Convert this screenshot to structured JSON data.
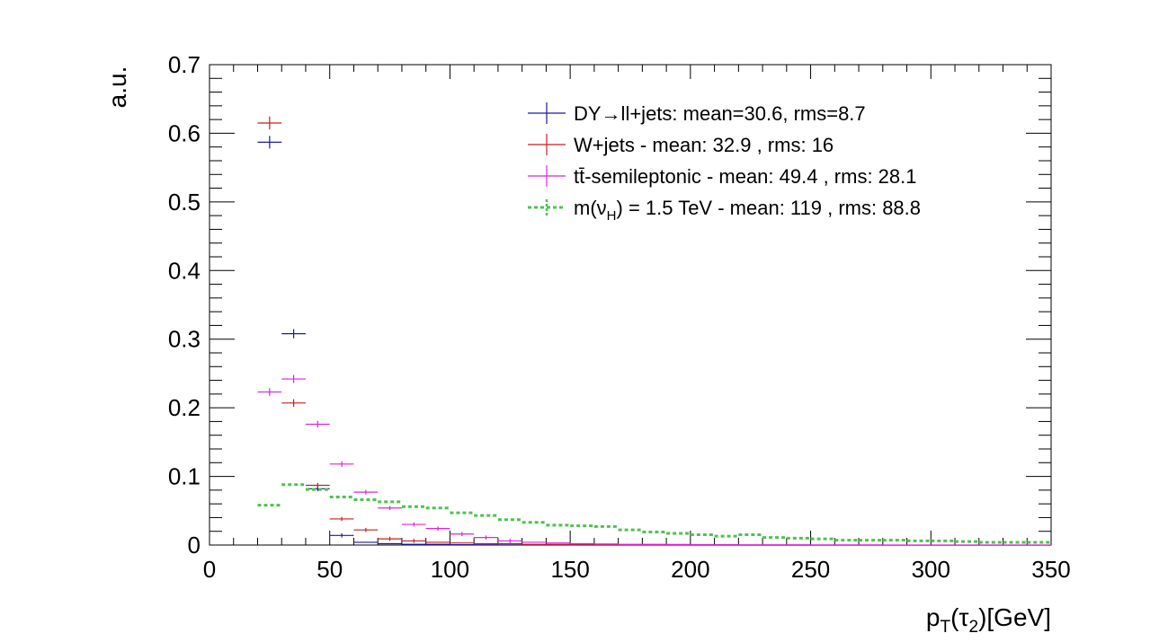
{
  "chart_data": {
    "type": "scatter",
    "title": "",
    "xlabel": {
      "base": "p",
      "sub": "T",
      "mid": "(τ",
      "sub2": "2",
      "tail": ")[GeV]"
    },
    "ylabel": "a.u.",
    "xlim": [
      0,
      350
    ],
    "ylim": [
      0,
      0.7
    ],
    "xticks": [
      "0",
      "50",
      "100",
      "150",
      "200",
      "250",
      "300",
      "350"
    ],
    "yticks": [
      "0",
      "0.1",
      "0.2",
      "0.3",
      "0.4",
      "0.5",
      "0.6",
      "0.7"
    ],
    "legend_position": "top-right",
    "series": [
      {
        "name": "DY→ll+jets: mean=30.6, rms=8.7",
        "color": "#1a1aa0",
        "style": "errorbar",
        "bin_width": 10,
        "x": [
          25,
          35,
          45,
          55,
          65,
          75,
          85,
          95,
          105,
          115,
          125,
          135,
          145,
          155
        ],
        "y": [
          0.587,
          0.308,
          0.082,
          0.014,
          0.004,
          0.002,
          0.001,
          0.001,
          0.0005,
          0.0003,
          0.0002,
          0.0001,
          0.0001,
          0.0001
        ]
      },
      {
        "name": "W+jets - mean: 32.9 , rms: 16",
        "color": "#c81e1e",
        "style": "errorbar",
        "bin_width": 10,
        "x": [
          25,
          35,
          45,
          55,
          65,
          75,
          85,
          95,
          105,
          115,
          125,
          135,
          145,
          155,
          165,
          175,
          185
        ],
        "y": [
          0.615,
          0.207,
          0.087,
          0.038,
          0.022,
          0.009,
          0.006,
          0.004,
          0.003,
          0.002,
          0.002,
          0.001,
          0.001,
          0.001,
          0.0008,
          0.0006,
          0.0005
        ]
      },
      {
        "name": "tt̄-semileptonic - mean: 49.4 , rms: 28.1",
        "color": "#e020e0",
        "style": "errorbar",
        "bin_width": 10,
        "x": [
          25,
          35,
          45,
          55,
          65,
          75,
          85,
          95,
          105,
          115,
          125,
          135,
          145,
          155,
          165,
          175,
          185,
          195,
          205,
          215,
          225,
          235,
          245,
          255,
          265,
          275,
          285,
          295,
          305,
          315,
          325,
          335,
          345
        ],
        "y": [
          0.223,
          0.242,
          0.176,
          0.118,
          0.077,
          0.054,
          0.03,
          0.024,
          0.016,
          0.011,
          0.006,
          0.004,
          0.003,
          0.002,
          0.0015,
          0.001,
          0.001,
          0.0008,
          0.0006,
          0.0005,
          0.0004,
          0.0003,
          0.0003,
          0.0002,
          0.0002,
          0.0002,
          0.0001,
          0.0001,
          0.0001,
          0.0001,
          0.0001,
          0.0001,
          0.0001
        ]
      },
      {
        "name": "m(ν_H) = 1.5 TeV - mean: 119 , rms: 88.8",
        "name_parts": {
          "pre": "m(ν",
          "sub": "H",
          "post": ") = 1.5 TeV - mean: 119 , rms: 88.8"
        },
        "color": "#4cc44c",
        "style": "dashed-step",
        "bin_width": 10,
        "x": [
          25,
          35,
          45,
          55,
          65,
          75,
          85,
          95,
          105,
          115,
          125,
          135,
          145,
          155,
          165,
          175,
          185,
          195,
          205,
          215,
          225,
          235,
          245,
          255,
          265,
          275,
          285,
          295,
          305,
          315,
          325,
          335,
          345
        ],
        "y": [
          0.058,
          0.088,
          0.081,
          0.07,
          0.066,
          0.063,
          0.056,
          0.054,
          0.047,
          0.043,
          0.037,
          0.033,
          0.029,
          0.028,
          0.027,
          0.022,
          0.019,
          0.017,
          0.015,
          0.013,
          0.015,
          0.011,
          0.01,
          0.009,
          0.007,
          0.007,
          0.007,
          0.006,
          0.006,
          0.005,
          0.004,
          0.004,
          0.004
        ]
      }
    ]
  }
}
